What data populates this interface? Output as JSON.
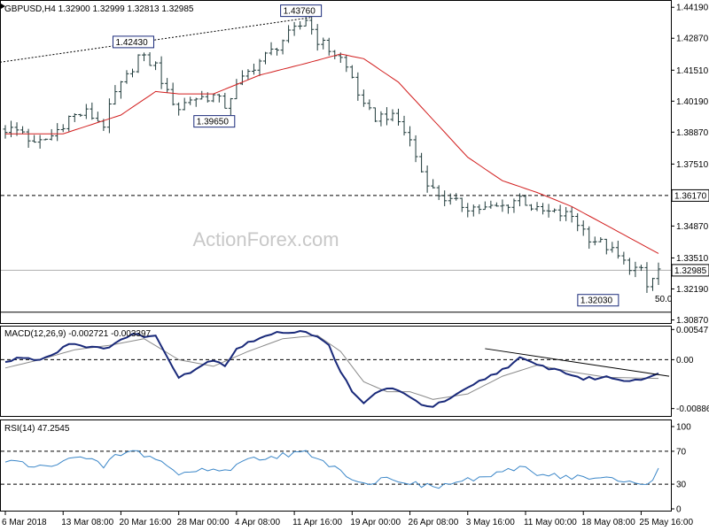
{
  "colors": {
    "candle": "#1f3a3a",
    "ma": "#d21e1e",
    "macd": "#1a2a7a",
    "signal": "#8a8a8a",
    "rsi": "#3a86c8",
    "grid": "#000000",
    "label_box": "#1a2a7a"
  },
  "chart_data": [
    {
      "type": "line",
      "panel": "price",
      "header": "GBPUSD,H4  1.32900 1.32999 1.32813 1.32985",
      "watermark": "ActionForex.com",
      "y_ticks": [
        "1.44190",
        "1.42870",
        "1.41510",
        "1.40190",
        "1.38870",
        "1.37510",
        "1.36170",
        "1.34870",
        "1.33510",
        "1.32985",
        "1.32190",
        "1.30870"
      ],
      "ylim": [
        1.307,
        1.445
      ],
      "x_tick_labels": [
        "6 Mar 2018",
        "13 Mar 08:00",
        "20 Mar 16:00",
        "28 Mar 00:00",
        "4 Apr 08:00",
        "11 Apr 16:00",
        "19 Apr 00:00",
        "26 Apr 08:00",
        "3 May 16:00",
        "11 May 00:00",
        "18 May 08:00",
        "25 May 16:00"
      ],
      "x_tick_index": [
        0,
        10,
        20,
        30,
        40,
        50,
        60,
        70,
        80,
        90,
        100,
        110
      ],
      "close_anchors": [
        [
          0,
          1.39
        ],
        [
          3,
          1.389
        ],
        [
          5,
          1.383
        ],
        [
          8,
          1.387
        ],
        [
          11,
          1.395
        ],
        [
          14,
          1.397
        ],
        [
          17,
          1.392
        ],
        [
          19,
          1.405
        ],
        [
          21,
          1.412
        ],
        [
          23,
          1.421
        ],
        [
          26,
          1.417
        ],
        [
          28,
          1.405
        ],
        [
          30,
          1.399
        ],
        [
          32,
          1.403
        ],
        [
          36,
          1.404
        ],
        [
          38,
          1.4
        ],
        [
          40,
          1.408
        ],
        [
          43,
          1.417
        ],
        [
          46,
          1.423
        ],
        [
          48,
          1.428
        ],
        [
          51,
          1.434
        ],
        [
          52,
          1.437
        ],
        [
          54,
          1.428
        ],
        [
          56,
          1.424
        ],
        [
          58,
          1.42
        ],
        [
          60,
          1.412
        ],
        [
          62,
          1.399
        ],
        [
          64,
          1.395
        ],
        [
          66,
          1.396
        ],
        [
          68,
          1.393
        ],
        [
          70,
          1.385
        ],
        [
          72,
          1.372
        ],
        [
          74,
          1.364
        ],
        [
          77,
          1.359
        ],
        [
          80,
          1.357
        ],
        [
          83,
          1.356
        ],
        [
          86,
          1.357
        ],
        [
          89,
          1.361
        ],
        [
          92,
          1.355
        ],
        [
          95,
          1.354
        ],
        [
          98,
          1.353
        ],
        [
          101,
          1.344
        ],
        [
          104,
          1.34
        ],
        [
          107,
          1.333
        ],
        [
          110,
          1.329
        ],
        [
          111,
          1.3225
        ],
        [
          113,
          1.3298
        ]
      ],
      "ma_anchors": [
        [
          0,
          1.388
        ],
        [
          10,
          1.388
        ],
        [
          20,
          1.396
        ],
        [
          26,
          1.406
        ],
        [
          30,
          1.405
        ],
        [
          36,
          1.405
        ],
        [
          44,
          1.413
        ],
        [
          52,
          1.418
        ],
        [
          58,
          1.422
        ],
        [
          62,
          1.42
        ],
        [
          68,
          1.41
        ],
        [
          74,
          1.394
        ],
        [
          80,
          1.378
        ],
        [
          86,
          1.368
        ],
        [
          92,
          1.363
        ],
        [
          98,
          1.357
        ],
        [
          104,
          1.349
        ],
        [
          110,
          1.341
        ],
        [
          113,
          1.337
        ]
      ],
      "swing_labels": [
        {
          "text": "1.42430",
          "index": 22,
          "value": 1.4243
        },
        {
          "text": "1.43760",
          "index": 51,
          "value": 1.4376
        },
        {
          "text": "1.39650",
          "index": 36,
          "value": 1.3965
        },
        {
          "text": "1.32030",
          "index": 107,
          "value": 1.3203
        }
      ],
      "levels": [
        {
          "name": "resistance",
          "label": "1.36170",
          "value": 1.3617,
          "style": "dashed"
        },
        {
          "name": "current",
          "label": "1.32985",
          "value": 1.32985,
          "style": "solid"
        },
        {
          "name": "lower",
          "label": "",
          "value": 1.312,
          "style": "solid"
        }
      ],
      "fib_label": "50.0",
      "trendline": {
        "from": [
          0,
          1.42
        ],
        "to": [
          53,
          1.4376
        ]
      }
    },
    {
      "type": "line",
      "panel": "macd",
      "header": "MACD(12,26,9) -0.002721 -0.003397",
      "y_ticks": [
        "0.00547",
        "0.00",
        "-0.00886"
      ],
      "ylim": [
        -0.0102,
        0.006
      ],
      "macd_anchors": [
        [
          0,
          -0.0005
        ],
        [
          3,
          0.0005
        ],
        [
          5,
          0.0
        ],
        [
          8,
          0.0008
        ],
        [
          11,
          0.003
        ],
        [
          14,
          0.0025
        ],
        [
          17,
          0.0018
        ],
        [
          19,
          0.0032
        ],
        [
          22,
          0.0045
        ],
        [
          26,
          0.0042
        ],
        [
          30,
          -0.003
        ],
        [
          32,
          -0.0022
        ],
        [
          36,
          0.0001
        ],
        [
          38,
          -0.001
        ],
        [
          40,
          0.002
        ],
        [
          44,
          0.004
        ],
        [
          48,
          0.005
        ],
        [
          52,
          0.0052
        ],
        [
          54,
          0.004
        ],
        [
          56,
          0.0025
        ],
        [
          58,
          -0.002
        ],
        [
          60,
          -0.006
        ],
        [
          62,
          -0.008
        ],
        [
          64,
          -0.006
        ],
        [
          67,
          -0.005
        ],
        [
          70,
          -0.007
        ],
        [
          72,
          -0.008
        ],
        [
          74,
          -0.0085
        ],
        [
          78,
          -0.0065
        ],
        [
          82,
          -0.004
        ],
        [
          86,
          -0.0018
        ],
        [
          89,
          0.0002
        ],
        [
          92,
          -0.001
        ],
        [
          96,
          -0.002
        ],
        [
          100,
          -0.0035
        ],
        [
          104,
          -0.0032
        ],
        [
          108,
          -0.0038
        ],
        [
          113,
          -0.0027
        ]
      ],
      "signal_anchors": [
        [
          0,
          -0.0015
        ],
        [
          6,
          0.0
        ],
        [
          12,
          0.0018
        ],
        [
          18,
          0.0026
        ],
        [
          24,
          0.0038
        ],
        [
          30,
          0.0
        ],
        [
          36,
          -0.0012
        ],
        [
          42,
          0.0015
        ],
        [
          48,
          0.0038
        ],
        [
          54,
          0.0044
        ],
        [
          58,
          0.0015
        ],
        [
          62,
          -0.004
        ],
        [
          66,
          -0.0058
        ],
        [
          70,
          -0.0058
        ],
        [
          74,
          -0.0072
        ],
        [
          80,
          -0.0062
        ],
        [
          86,
          -0.003
        ],
        [
          92,
          -0.001
        ],
        [
          98,
          -0.0022
        ],
        [
          104,
          -0.0032
        ],
        [
          113,
          -0.0034
        ]
      ],
      "trendline": {
        "from": [
          83,
          0.002
        ],
        "to": [
          113,
          -0.003
        ]
      }
    },
    {
      "type": "line",
      "panel": "rsi",
      "header": "RSI(14) 47.2545",
      "y_ticks": [
        "100",
        "70",
        "30",
        "0"
      ],
      "ylim": [
        0,
        100
      ],
      "rsi_anchors": [
        [
          0,
          56
        ],
        [
          3,
          58
        ],
        [
          5,
          48
        ],
        [
          8,
          55
        ],
        [
          11,
          62
        ],
        [
          14,
          60
        ],
        [
          17,
          52
        ],
        [
          19,
          64
        ],
        [
          22,
          70
        ],
        [
          26,
          62
        ],
        [
          30,
          42
        ],
        [
          32,
          45
        ],
        [
          36,
          50
        ],
        [
          38,
          44
        ],
        [
          40,
          56
        ],
        [
          44,
          62
        ],
        [
          48,
          66
        ],
        [
          52,
          68
        ],
        [
          54,
          58
        ],
        [
          56,
          55
        ],
        [
          58,
          48
        ],
        [
          60,
          38
        ],
        [
          62,
          30
        ],
        [
          64,
          34
        ],
        [
          67,
          38
        ],
        [
          70,
          32
        ],
        [
          72,
          28
        ],
        [
          74,
          26
        ],
        [
          78,
          32
        ],
        [
          82,
          38
        ],
        [
          86,
          42
        ],
        [
          89,
          52
        ],
        [
          92,
          44
        ],
        [
          96,
          40
        ],
        [
          100,
          38
        ],
        [
          104,
          36
        ],
        [
          108,
          32
        ],
        [
          111,
          30
        ],
        [
          113,
          47
        ]
      ]
    }
  ]
}
